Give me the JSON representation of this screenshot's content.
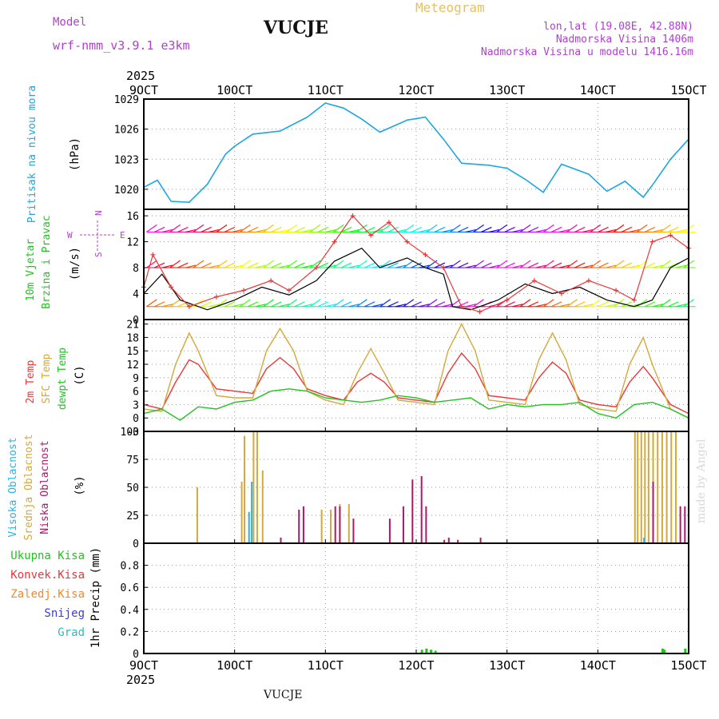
{
  "header": {
    "model_label": "Model",
    "model_name": "wrf-nmm_v3.9.1 e3km",
    "station": "VUCJE",
    "meteogram": "Meteogram",
    "lonlat": "lon,lat (19.08E, 42.88N)",
    "elevation": "Nadmorska Visina 1406m",
    "model_elevation": "Nadmorska Visina u modelu 1416.16m",
    "footer_station": "VUCJE",
    "watermark": "made by Angel"
  },
  "colors": {
    "pressure": "#1fa6e0",
    "wind_speed": "#000000",
    "wind_gust": "#e8383a",
    "temp2m": "#e8383a",
    "sfc_temp": "#d4a93a",
    "dewpt": "#22c222",
    "cloud_high": "#2ab2e6",
    "cloud_mid": "#d4a93a",
    "cloud_low": "#b0166c",
    "precip_total": "#22c222",
    "precip_conv": "#e8383a",
    "precip_frz": "#f08a2a",
    "precip_snow": "#3b3be0",
    "precip_grad": "#2abdbd",
    "wind_legend": "#b040d0"
  },
  "chart_data": {
    "type": "line",
    "x_ticks": [
      "9OCT",
      "10OCT",
      "11OCT",
      "12OCT",
      "13OCT",
      "14OCT",
      "15OCT"
    ],
    "x_year": "2025",
    "panels": [
      {
        "id": "pressure",
        "ylabel_name": "Pritisak na nivou mora",
        "ylabel_unit": "(hPa)",
        "ylim": [
          1018,
          1029
        ],
        "yticks": [
          1020,
          1023,
          1026,
          1029
        ],
        "series": [
          {
            "name": "pressure",
            "x": [
              0,
              0.15,
              0.3,
              0.5,
              0.7,
              0.9,
              1,
              1.2,
              1.5,
              1.8,
              2,
              2.2,
              2.4,
              2.6,
              2.9,
              3.1,
              3.3,
              3.5,
              3.8,
              4,
              4.2,
              4.4,
              4.6,
              4.9,
              5.1,
              5.3,
              5.5,
              5.6,
              5.8,
              6
            ],
            "values": [
              1020.2,
              1020.9,
              1018.8,
              1018.7,
              1020.5,
              1023.5,
              1024.3,
              1025.5,
              1025.8,
              1027.2,
              1028.6,
              1028.1,
              1027.0,
              1025.7,
              1026.9,
              1027.2,
              1025.0,
              1022.6,
              1022.4,
              1022.1,
              1021.0,
              1019.7,
              1022.5,
              1021.5,
              1019.8,
              1020.8,
              1019.2,
              1020.4,
              1023.0,
              1025.0
            ]
          }
        ]
      },
      {
        "id": "wind",
        "ylabel_name": "10m Vjetar Brzina i Pravac",
        "ylabel_unit": "(m/s)",
        "ylim": [
          0,
          17
        ],
        "yticks": [
          0,
          4,
          8,
          12,
          16
        ],
        "wind_legend": {
          "n": "N",
          "s": "S",
          "e": "E",
          "w": "W"
        },
        "series": [
          {
            "name": "speed",
            "x": [
              0,
              0.2,
              0.4,
              0.7,
              1,
              1.3,
              1.6,
              1.9,
              2.1,
              2.4,
              2.6,
              2.9,
              3.1,
              3.3,
              3.4,
              3.6,
              3.9,
              4.2,
              4.5,
              4.8,
              5.1,
              5.4,
              5.6,
              5.8,
              6
            ],
            "values": [
              4,
              7,
              3,
              1.5,
              3,
              5,
              3.8,
              6,
              9,
              11,
              8,
              9.5,
              8,
              7,
              2,
              1.5,
              3,
              5.5,
              4,
              5,
              3,
              2,
              3,
              8,
              9.5
            ]
          },
          {
            "name": "gust",
            "x": [
              0,
              0.1,
              0.3,
              0.5,
              0.8,
              1.1,
              1.4,
              1.6,
              1.9,
              2.1,
              2.3,
              2.5,
              2.7,
              2.9,
              3.1,
              3.3,
              3.5,
              3.7,
              4,
              4.3,
              4.6,
              4.9,
              5.2,
              5.4,
              5.6,
              5.8,
              6
            ],
            "values": [
              5,
              10,
              5,
              2,
              3.5,
              4.5,
              6,
              4.5,
              8,
              12,
              16,
              13,
              15,
              12,
              10,
              8,
              2,
              1.2,
              3,
              6,
              4,
              6,
              4.5,
              3,
              12,
              13,
              11
            ]
          }
        ],
        "barb_rows": [
          13.5,
          8.0,
          2.0
        ]
      },
      {
        "id": "temp",
        "ylabel_name": "2m Temp / SFC Temp / dewpt Temp",
        "ylabel_lines": [
          "2m Temp",
          "SFC Temp",
          "dewpt Temp"
        ],
        "ylabel_unit": "(C)",
        "ylim": [
          -3,
          22
        ],
        "yticks": [
          -3,
          0,
          3,
          6,
          9,
          12,
          15,
          18,
          21
        ],
        "series": [
          {
            "name": "2m",
            "x": [
              0,
              0.2,
              0.35,
              0.5,
              0.6,
              0.8,
              1,
              1.2,
              1.35,
              1.5,
              1.65,
              1.8,
              2,
              2.2,
              2.35,
              2.5,
              2.65,
              2.8,
              3,
              3.2,
              3.35,
              3.5,
              3.65,
              3.8,
              4,
              4.2,
              4.35,
              4.5,
              4.65,
              4.8,
              5,
              5.2,
              5.35,
              5.5,
              5.6,
              5.8,
              6
            ],
            "values": [
              3,
              2,
              8,
              13,
              12,
              6.5,
              6,
              5.5,
              11,
              13.5,
              11,
              6.5,
              5,
              4,
              8,
              10,
              8,
              4.5,
              4,
              3.5,
              10,
              14.5,
              11,
              5,
              4.5,
              4,
              9,
              12.5,
              10,
              4,
              3,
              2.5,
              8,
              11.5,
              9,
              3,
              1
            ]
          },
          {
            "name": "sfc",
            "x": [
              0,
              0.2,
              0.35,
              0.5,
              0.6,
              0.8,
              1,
              1.2,
              1.35,
              1.5,
              1.65,
              1.8,
              2,
              2.2,
              2.35,
              2.5,
              2.65,
              2.8,
              3,
              3.2,
              3.35,
              3.5,
              3.65,
              3.8,
              4,
              4.2,
              4.35,
              4.5,
              4.65,
              4.8,
              5,
              5.2,
              5.35,
              5.5,
              5.6,
              5.8,
              6
            ],
            "values": [
              2,
              1.5,
              12,
              19,
              15,
              5,
              4.5,
              4.5,
              15,
              20,
              15,
              6,
              4,
              3,
              10,
              15.5,
              10,
              4,
              3.5,
              3,
              15,
              21,
              15,
              4,
              3.5,
              3,
              13,
              19,
              13,
              3,
              2,
              1.5,
              12,
              18,
              12,
              2,
              0
            ]
          },
          {
            "name": "dewpt",
            "x": [
              0,
              0.2,
              0.4,
              0.6,
              0.8,
              1,
              1.2,
              1.4,
              1.6,
              1.8,
              2,
              2.2,
              2.4,
              2.6,
              2.8,
              3,
              3.2,
              3.4,
              3.6,
              3.8,
              4,
              4.2,
              4.4,
              4.6,
              4.8,
              5,
              5.2,
              5.4,
              5.6,
              5.8,
              6
            ],
            "values": [
              1,
              2,
              -0.5,
              2.5,
              2,
              3.5,
              4,
              6,
              6.5,
              6,
              4.5,
              4,
              3.5,
              4,
              5,
              4.5,
              3.5,
              4,
              4.5,
              2,
              3,
              2.5,
              3,
              3,
              3.5,
              1,
              0,
              3,
              3.5,
              2,
              0
            ]
          }
        ]
      },
      {
        "id": "cloud",
        "ylabel_lines": [
          "Visoka Oblacnost",
          "Srednja Oblacnost",
          "Niska Oblacnost"
        ],
        "ylabel_unit": "(%)",
        "ylim": [
          0,
          100
        ],
        "yticks": [
          0,
          25,
          50,
          75,
          100
        ],
        "bars": [
          {
            "layer": "mid",
            "x": [
              0.58,
              1.07,
              1.1,
              1.2,
              1.24,
              1.3,
              1.95,
              2.05,
              2.15,
              2.25,
              5.4,
              5.43,
              5.47,
              5.51,
              5.55,
              5.6,
              5.65,
              5.7,
              5.75,
              5.8,
              5.85
            ],
            "values": [
              50,
              55,
              96,
              100,
              100,
              65,
              30,
              30,
              35,
              35,
              100,
              100,
              100,
              100,
              100,
              100,
              100,
              100,
              100,
              100,
              100
            ]
          },
          {
            "layer": "high",
            "x": [
              1.15,
              1.18,
              5.5
            ],
            "values": [
              28,
              55,
              5
            ]
          },
          {
            "layer": "low",
            "x": [
              1.5,
              1.7,
              1.75,
              2.1,
              2.15,
              2.3,
              2.7,
              2.85,
              2.95,
              3.05,
              3.1,
              3.3,
              3.35,
              3.45,
              3.7,
              5.6,
              5.9,
              5.95
            ],
            "values": [
              5,
              30,
              33,
              33,
              33,
              22,
              22,
              33,
              57,
              60,
              33,
              3,
              5,
              3,
              5,
              55,
              33,
              33
            ]
          }
        ]
      },
      {
        "id": "precip",
        "ylabel_unit": "1hr Precip (mm)",
        "ylim": [
          0,
          1.0
        ],
        "yticks": [
          0,
          0.2,
          0.4,
          0.6,
          0.8
        ],
        "legend": [
          "Ukupna Kisa",
          "Konvek.Kisa",
          "Zaledj.Kisa",
          "Snijeg",
          "Grad"
        ],
        "bars": [
          {
            "layer": "total",
            "x": [
              3.05,
              3.1,
              3.15,
              3.2,
              5.7,
              5.72,
              5.95
            ],
            "values": [
              0.02,
              0.03,
              0.02,
              0.01,
              0.03,
              0.02,
              0.03
            ]
          }
        ]
      }
    ]
  }
}
